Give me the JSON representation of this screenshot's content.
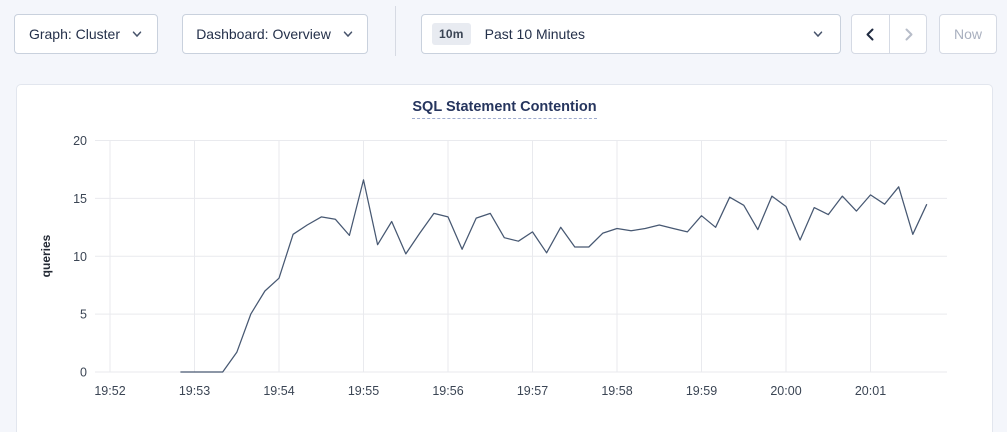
{
  "toolbar": {
    "graph_dropdown_label": "Graph: Cluster",
    "dashboard_dropdown_label": "Dashboard: Overview",
    "time_window_badge": "10m",
    "time_window_label": "Past 10 Minutes",
    "now_label": "Now",
    "icons": {
      "graph_dropdown": "chevron-down",
      "dashboard_dropdown": "chevron-down",
      "time_window": "chevron-down",
      "prev": "chevron-left",
      "next": "chevron-right"
    }
  },
  "chart_data": {
    "type": "line",
    "title": "SQL Statement Contention",
    "xlabel": "",
    "ylabel": "queries",
    "ylim": [
      0,
      20
    ],
    "y_ticks": [
      0,
      5,
      10,
      15,
      20
    ],
    "x_ticks": [
      "19:52",
      "19:53",
      "19:54",
      "19:55",
      "19:56",
      "19:57",
      "19:58",
      "19:59",
      "20:00",
      "20:01"
    ],
    "grid": true,
    "legend": "none",
    "line_color": "#475872",
    "grid_color": "#e9eaee",
    "series": [
      {
        "name": "queries",
        "start_time": "19:52:50",
        "interval_seconds": 10,
        "values": [
          0,
          0,
          0,
          0,
          1.7,
          5,
          7,
          8.1,
          11.9,
          12.7,
          13.4,
          13.2,
          11.8,
          16.6,
          11,
          13,
          10.2,
          12,
          13.7,
          13.4,
          10.6,
          13.3,
          13.7,
          11.6,
          11.3,
          12.1,
          10.3,
          12.5,
          10.8,
          10.8,
          12,
          12.4,
          12.2,
          12.4,
          12.7,
          12.4,
          12.1,
          13.5,
          12.5,
          15.1,
          14.4,
          12.3,
          15.2,
          14.3,
          11.4,
          14.2,
          13.6,
          15.2,
          13.9,
          15.3,
          14.5,
          16,
          11.9,
          14.5
        ]
      }
    ]
  }
}
